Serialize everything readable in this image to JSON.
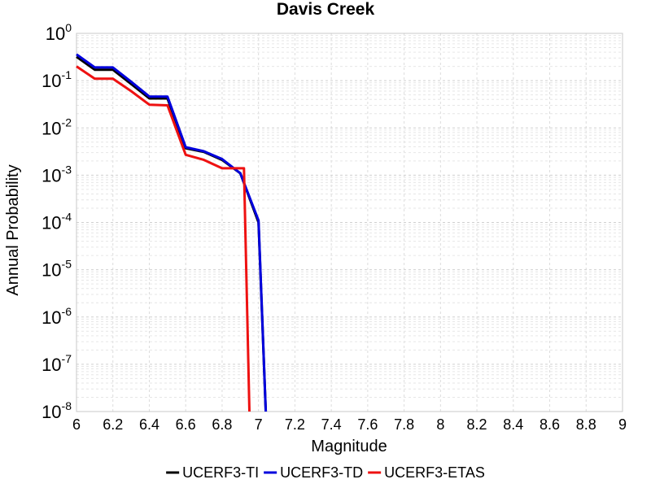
{
  "chart_data": {
    "type": "line",
    "title": "Davis Creek",
    "xlabel": "Magnitude",
    "ylabel": "Annual Probability",
    "xlim": [
      6,
      9
    ],
    "ylim": [
      1e-08,
      1
    ],
    "yscale": "log",
    "grid": true,
    "legend_position": "bottom",
    "x_ticks": [
      "6",
      "6.2",
      "6.4",
      "6.6",
      "6.8",
      "7",
      "7.2",
      "7.4",
      "7.6",
      "7.8",
      "8",
      "8.2",
      "8.4",
      "8.6",
      "8.8",
      "9"
    ],
    "y_ticks": [
      {
        "base": "10",
        "exp": "0"
      },
      {
        "base": "10",
        "exp": "-1"
      },
      {
        "base": "10",
        "exp": "-2"
      },
      {
        "base": "10",
        "exp": "-3"
      },
      {
        "base": "10",
        "exp": "-4"
      },
      {
        "base": "10",
        "exp": "-5"
      },
      {
        "base": "10",
        "exp": "-6"
      },
      {
        "base": "10",
        "exp": "-7"
      },
      {
        "base": "10",
        "exp": "-8"
      }
    ],
    "series": [
      {
        "name": "UCERF3-TI",
        "color": "#000000",
        "x": [
          6.0,
          6.1,
          6.2,
          6.3,
          6.4,
          6.5,
          6.6,
          6.7,
          6.8,
          6.9,
          7.0,
          7.04
        ],
        "y": [
          0.32,
          0.17,
          0.17,
          0.085,
          0.042,
          0.042,
          0.0037,
          0.0031,
          0.0021,
          0.0011,
          0.0001,
          1e-08
        ]
      },
      {
        "name": "UCERF3-TD",
        "color": "#0000dd",
        "x": [
          6.0,
          6.1,
          6.2,
          6.3,
          6.4,
          6.5,
          6.6,
          6.7,
          6.8,
          6.9,
          7.0,
          7.04
        ],
        "y": [
          0.36,
          0.19,
          0.19,
          0.095,
          0.046,
          0.046,
          0.0039,
          0.0032,
          0.0022,
          0.0011,
          0.00011,
          1e-08
        ]
      },
      {
        "name": "UCERF3-ETAS",
        "color": "#ee1111",
        "x": [
          6.0,
          6.1,
          6.2,
          6.3,
          6.4,
          6.5,
          6.6,
          6.7,
          6.8,
          6.9,
          6.92,
          6.95
        ],
        "y": [
          0.2,
          0.11,
          0.11,
          0.06,
          0.031,
          0.03,
          0.0027,
          0.0021,
          0.0014,
          0.0014,
          0.0014,
          1e-08
        ]
      }
    ]
  }
}
